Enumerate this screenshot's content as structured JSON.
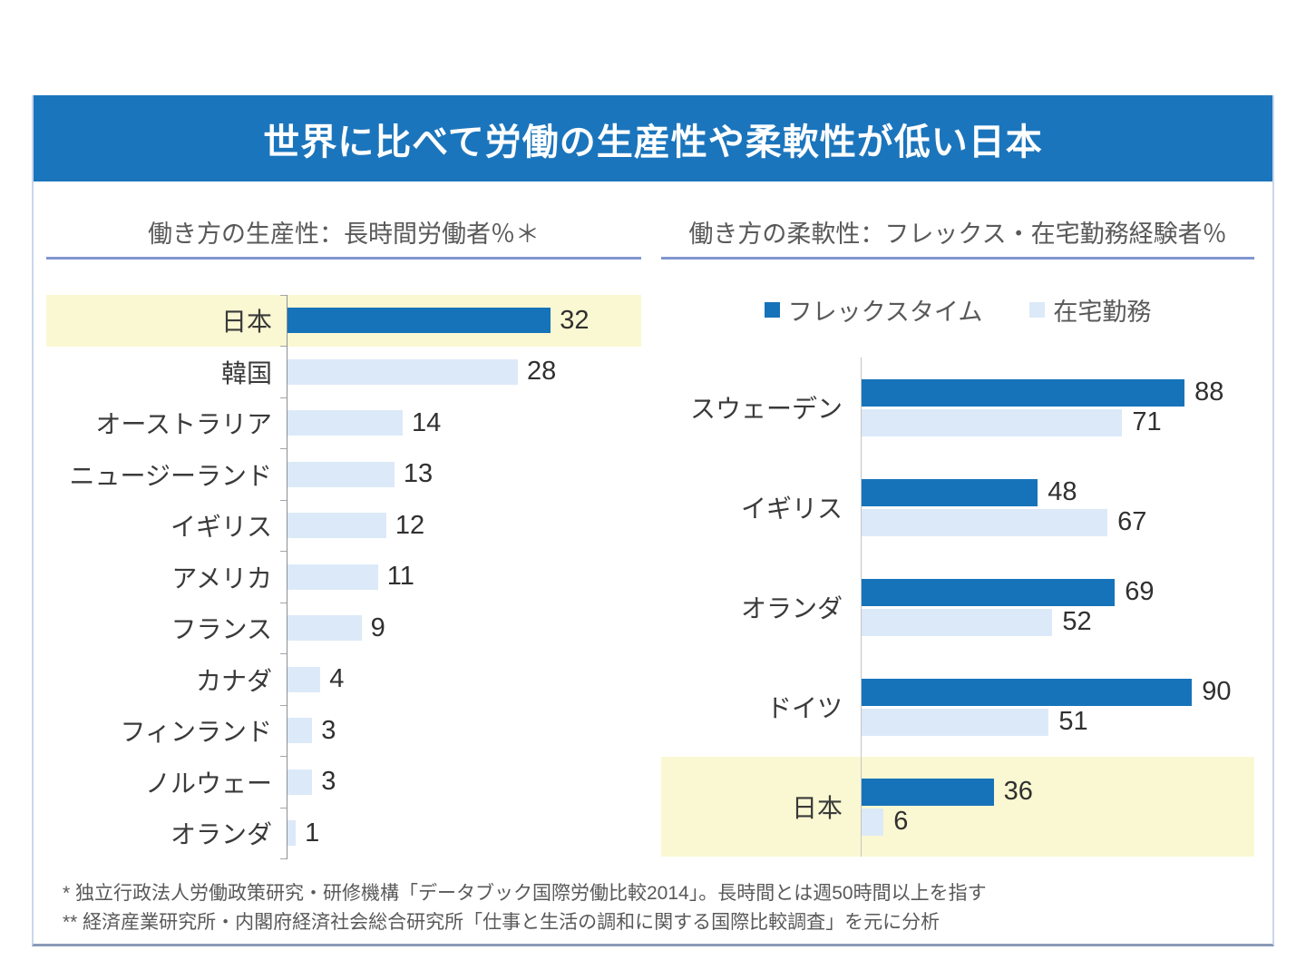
{
  "title": "世界に比べて労働の生産性や柔軟性が低い日本",
  "colors": {
    "header_bg": "#1B75BC",
    "bar_dark": "#1673B9",
    "bar_light": "#DCE9F8",
    "highlight": "#FAF8D2",
    "title_underline": "#8096D0",
    "panel_border": "#C9D6EC",
    "panel_bottom_border": "#8A9BB8",
    "axis_left": "#8A9096",
    "axis_right": "#C4C4C4",
    "text_dark": "#303030",
    "text_gray": "#595959",
    "title_text": "#FFFFFF"
  },
  "chart_data": [
    {
      "type": "bar",
      "orientation": "horizontal",
      "title": "働き方の生産性：長時間労働者％＊",
      "categories": [
        "日本",
        "韓国",
        "オーストラリア",
        "ニュージーランド",
        "イギリス",
        "アメリカ",
        "フランス",
        "カナダ",
        "フィンランド",
        "ノルウェー",
        "オランダ"
      ],
      "values": [
        32,
        28,
        14,
        13,
        12,
        11,
        9,
        4,
        3,
        3,
        1
      ],
      "highlight_category": "日本",
      "unit": "%",
      "xlim": [
        0,
        43
      ],
      "grid": false,
      "value_labels": true
    },
    {
      "type": "bar",
      "orientation": "horizontal",
      "title": "働き方の柔軟性：フレックス・在宅勤務経験者％",
      "categories": [
        "スウェーデン",
        "イギリス",
        "オランダ",
        "ドイツ",
        "日本"
      ],
      "series": [
        {
          "name": "フレックスタイム",
          "values": [
            88,
            48,
            69,
            90,
            36
          ],
          "color_key": "bar_dark"
        },
        {
          "name": "在宅勤務",
          "values": [
            71,
            67,
            52,
            51,
            6
          ],
          "color_key": "bar_light"
        }
      ],
      "highlight_category": "日本",
      "unit": "%",
      "xlim": [
        0,
        107
      ],
      "grid": false,
      "legend_position": "top",
      "value_labels": true
    }
  ],
  "footnotes": [
    "* 独立行政法人労働政策研究・研修機構「データブック国際労働比較2014」。長時間とは週50時間以上を指す",
    "** 経済産業研究所・内閣府経済社会総合研究所「仕事と生活の調和に関する国際比較調査」を元に分析"
  ]
}
